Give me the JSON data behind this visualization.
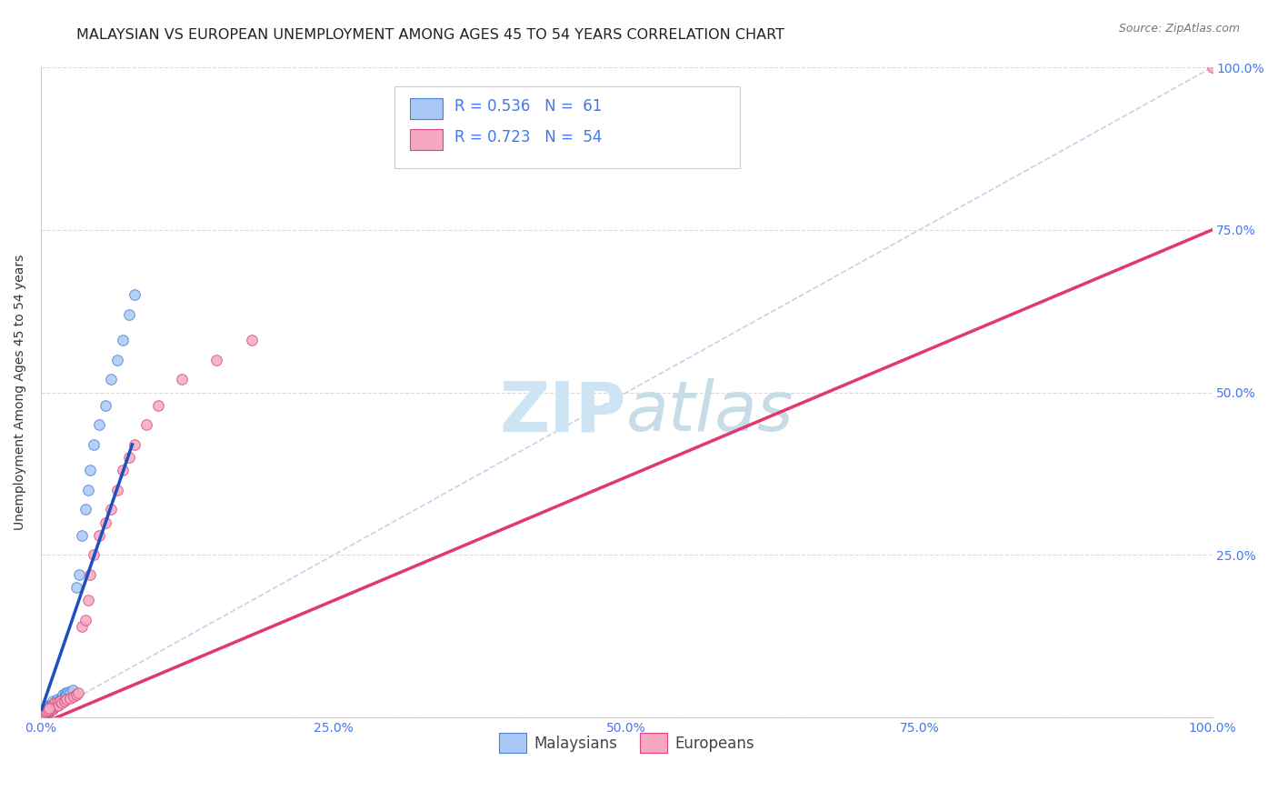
{
  "title": "MALAYSIAN VS EUROPEAN UNEMPLOYMENT AMONG AGES 45 TO 54 YEARS CORRELATION CHART",
  "source": "Source: ZipAtlas.com",
  "ylabel": "Unemployment Among Ages 45 to 54 years",
  "xlim": [
    0.0,
    1.0
  ],
  "ylim": [
    0.0,
    1.0
  ],
  "xticks": [
    0.0,
    0.25,
    0.5,
    0.75,
    1.0
  ],
  "yticks": [
    0.0,
    0.25,
    0.5,
    0.75,
    1.0
  ],
  "xtick_labels": [
    "0.0%",
    "25.0%",
    "50.0%",
    "75.0%",
    "100.0%"
  ],
  "right_ytick_labels": [
    "",
    "25.0%",
    "50.0%",
    "75.0%",
    "100.0%"
  ],
  "malaysian_color": "#aac8f5",
  "european_color": "#f5a8c0",
  "malaysian_edge": "#4a80d8",
  "european_edge": "#d84880",
  "trendline_malaysian_color": "#1a50c0",
  "trendline_european_color": "#e03870",
  "diagonal_color": "#b8d0e8",
  "watermark_color": "#cde4f5",
  "background_color": "#ffffff",
  "grid_color": "#d8d8d8",
  "title_fontsize": 11.5,
  "axis_label_fontsize": 10,
  "tick_fontsize": 10,
  "legend_fontsize": 12,
  "marker_size": 70,
  "blue_text_color": "#4477ee"
}
